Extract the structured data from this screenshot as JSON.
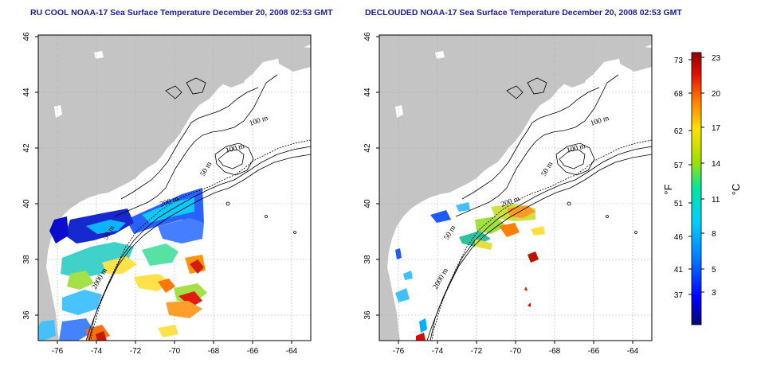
{
  "panels": [
    {
      "title": "RU COOL NOAA-17 Sea Surface Temperature December 20, 2008 02:53 GMT",
      "lat_ticks": [
        "46",
        "44",
        "42",
        "40",
        "38",
        "36"
      ],
      "lon_ticks": [
        "-76",
        "-74",
        "-72",
        "-70",
        "-68",
        "-66",
        "-64"
      ],
      "contour_labels": [
        "100 m",
        "100 m",
        "50 m",
        "200 m",
        "50 m",
        "2000 m"
      ]
    },
    {
      "title": "DECLOUDED NOAA-17 Sea Surface Temperature December 20, 2008 02:53 GMT",
      "lat_ticks": [
        "46",
        "44",
        "42",
        "40",
        "38",
        "36"
      ],
      "lon_ticks": [
        "-76",
        "-74",
        "-72",
        "-70",
        "-68",
        "-66",
        "-64"
      ],
      "contour_labels": [
        "100 m",
        "100 m",
        "50 m",
        "200 m",
        "50 m",
        "2000 m"
      ]
    }
  ],
  "colorbar": {
    "f_unit": "°F",
    "c_unit": "°C",
    "f_ticks": [
      "73",
      "68",
      "62",
      "57",
      "51",
      "46",
      "41",
      "37"
    ],
    "c_ticks": [
      "23",
      "20",
      "17",
      "14",
      "11",
      "8",
      "5",
      "3"
    ],
    "colors": [
      "#08086e",
      "#0000ff",
      "#0080ff",
      "#00d0ff",
      "#00e6a0",
      "#a0e000",
      "#ffe000",
      "#ff8000",
      "#e01000",
      "#900000"
    ]
  },
  "land_color": "#c4c4c4"
}
